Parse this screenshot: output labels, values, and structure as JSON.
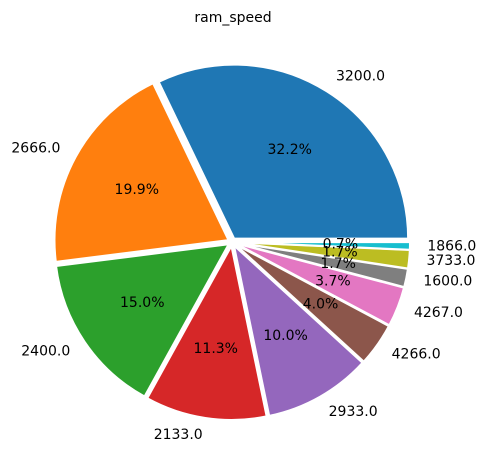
{
  "chart_data": {
    "type": "pie",
    "title": "ram_speed",
    "categories": [
      "3200.0",
      "2666.0",
      "2400.0",
      "2133.0",
      "2933.0",
      "4266.0",
      "4267.0",
      "1600.0",
      "3733.0",
      "1866.0"
    ],
    "values": [
      32.2,
      19.9,
      15.0,
      11.3,
      10.0,
      4.0,
      3.7,
      1.7,
      1.7,
      0.7
    ],
    "percent_labels": [
      "32.2%",
      "19.9%",
      "15.0%",
      "11.3%",
      "10.0%",
      "4.0%",
      "3.7%",
      "1.7%",
      "1.7%",
      "0.7%"
    ],
    "colors": [
      "#1f77b4",
      "#ff7f0e",
      "#2ca02c",
      "#d62728",
      "#9467bd",
      "#8c564b",
      "#e377c2",
      "#7f7f7f",
      "#bcbd22",
      "#17becf"
    ],
    "start_angle_deg": 0,
    "direction": "counterclockwise"
  }
}
